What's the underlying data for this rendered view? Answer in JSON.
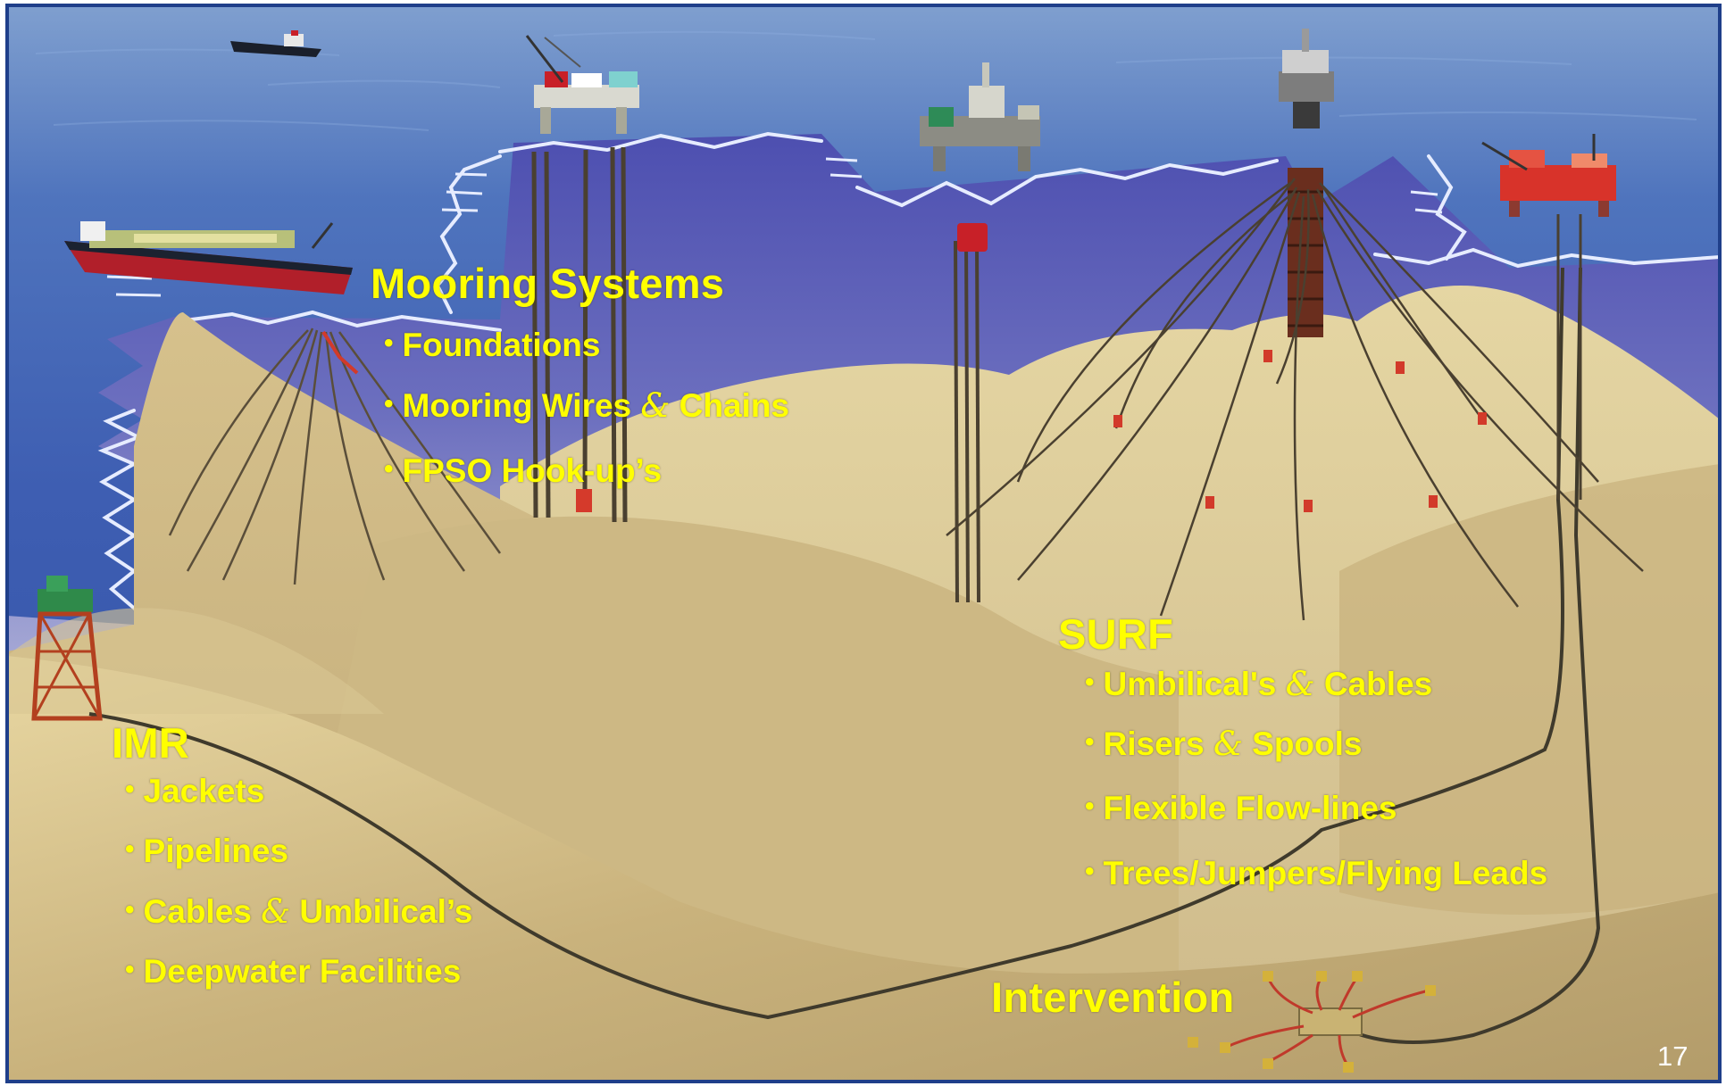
{
  "slide": {
    "page_number": "17"
  },
  "colors": {
    "label_text": "#ffff00",
    "sea": "#3a5fb0",
    "seabed": "#d9c48f",
    "frame": "#1f3f8a"
  },
  "mooring": {
    "heading": "Mooring Systems",
    "items": [
      {
        "text": "Foundations"
      },
      {
        "a": "Mooring Wires ",
        "amp": "&",
        "b": " Chains"
      },
      {
        "text": "FPSO Hook-up’s"
      }
    ]
  },
  "surf": {
    "heading": "SURF",
    "items": [
      {
        "a": "Umbilical's ",
        "amp": "&",
        "b": " Cables"
      },
      {
        "a": "Risers ",
        "amp": "&",
        "b": " Spools"
      },
      {
        "text": "Flexible Flow-lines"
      },
      {
        "text": "Trees/Jumpers/Flying Leads"
      }
    ]
  },
  "imr": {
    "heading": "IMR",
    "items": [
      {
        "text": "Jackets"
      },
      {
        "text": "Pipelines"
      },
      {
        "a": "Cables ",
        "amp": "&",
        "b": " Umbilical’s"
      },
      {
        "text": "Deepwater Facilities"
      }
    ]
  },
  "intervention": {
    "heading": "Intervention"
  },
  "icons": [
    "fpso-vessel",
    "supply-boat",
    "semi-submersible",
    "spar-platform",
    "tlp-platform",
    "fixed-jacket",
    "subsea-manifold",
    "mooring-line",
    "riser"
  ]
}
